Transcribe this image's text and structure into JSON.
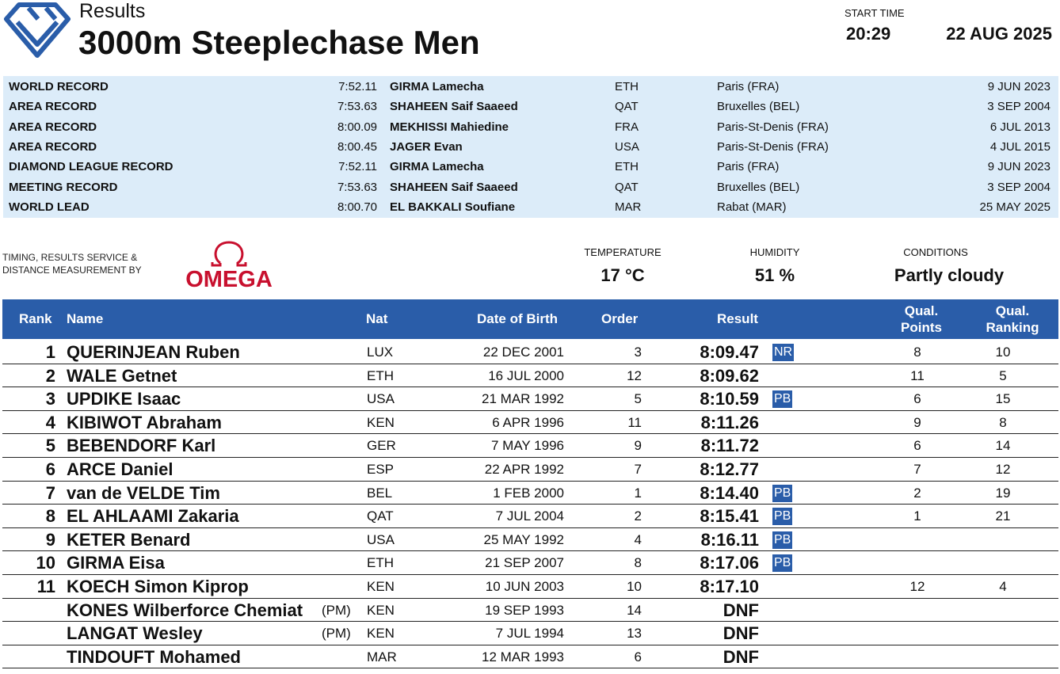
{
  "header": {
    "results_label": "Results",
    "event_title": "3000m Steeplechase Men",
    "start_time_label": "START TIME",
    "start_time": "20:29",
    "date": "22 AUG 2025"
  },
  "records": [
    {
      "type": "WORLD RECORD",
      "mark": "7:52.11",
      "athlete": "GIRMA Lamecha",
      "nat": "ETH",
      "venue": "Paris (FRA)",
      "date": "9 JUN 2023"
    },
    {
      "type": "AREA RECORD",
      "mark": "7:53.63",
      "athlete": "SHAHEEN Saif Saaeed",
      "nat": "QAT",
      "venue": "Bruxelles (BEL)",
      "date": "3 SEP 2004"
    },
    {
      "type": "AREA RECORD",
      "mark": "8:00.09",
      "athlete": "MEKHISSI Mahiedine",
      "nat": "FRA",
      "venue": "Paris-St-Denis (FRA)",
      "date": "6 JUL 2013"
    },
    {
      "type": "AREA RECORD",
      "mark": "8:00.45",
      "athlete": "JAGER Evan",
      "nat": "USA",
      "venue": "Paris-St-Denis (FRA)",
      "date": "4 JUL 2015"
    },
    {
      "type": "DIAMOND LEAGUE RECORD",
      "mark": "7:52.11",
      "athlete": "GIRMA Lamecha",
      "nat": "ETH",
      "venue": "Paris (FRA)",
      "date": "9 JUN 2023"
    },
    {
      "type": "MEETING RECORD",
      "mark": "7:53.63",
      "athlete": "SHAHEEN Saif Saaeed",
      "nat": "QAT",
      "venue": "Bruxelles (BEL)",
      "date": "3 SEP 2004"
    },
    {
      "type": "WORLD LEAD",
      "mark": "8:00.70",
      "athlete": "EL BAKKALI Soufiane",
      "nat": "MAR",
      "venue": "Rabat (MAR)",
      "date": "25 MAY 2025"
    }
  ],
  "timing": {
    "line1": "TIMING, RESULTS SERVICE &",
    "line2": "DISTANCE MEASUREMENT BY",
    "brand": "OMEGA"
  },
  "conditions": {
    "temperature_label": "TEMPERATURE",
    "temperature": "17 °C",
    "humidity_label": "HUMIDITY",
    "humidity": "51 %",
    "conditions_label": "CONDITIONS",
    "conditions": "Partly cloudy"
  },
  "columns": {
    "rank": "Rank",
    "name": "Name",
    "nat": "Nat",
    "dob": "Date of Birth",
    "order": "Order",
    "result": "Result",
    "qual_points_1": "Qual.",
    "qual_points_2": "Points",
    "qual_ranking_1": "Qual.",
    "qual_ranking_2": "Ranking"
  },
  "results": [
    {
      "rank": "1",
      "name": "QUERINJEAN Ruben",
      "pm": "",
      "nat": "LUX",
      "dob": "22 DEC 2001",
      "order": "3",
      "result": "8:09.47",
      "badge": "NR",
      "qual_points": "8",
      "qual_ranking": "10"
    },
    {
      "rank": "2",
      "name": "WALE Getnet",
      "pm": "",
      "nat": "ETH",
      "dob": "16 JUL 2000",
      "order": "12",
      "result": "8:09.62",
      "badge": "",
      "qual_points": "11",
      "qual_ranking": "5"
    },
    {
      "rank": "3",
      "name": "UPDIKE Isaac",
      "pm": "",
      "nat": "USA",
      "dob": "21 MAR 1992",
      "order": "5",
      "result": "8:10.59",
      "badge": "PB",
      "qual_points": "6",
      "qual_ranking": "15"
    },
    {
      "rank": "4",
      "name": "KIBIWOT Abraham",
      "pm": "",
      "nat": "KEN",
      "dob": "6 APR 1996",
      "order": "11",
      "result": "8:11.26",
      "badge": "",
      "qual_points": "9",
      "qual_ranking": "8"
    },
    {
      "rank": "5",
      "name": "BEBENDORF Karl",
      "pm": "",
      "nat": "GER",
      "dob": "7 MAY 1996",
      "order": "9",
      "result": "8:11.72",
      "badge": "",
      "qual_points": "6",
      "qual_ranking": "14"
    },
    {
      "rank": "6",
      "name": "ARCE Daniel",
      "pm": "",
      "nat": "ESP",
      "dob": "22 APR 1992",
      "order": "7",
      "result": "8:12.77",
      "badge": "",
      "qual_points": "7",
      "qual_ranking": "12"
    },
    {
      "rank": "7",
      "name": "van de VELDE Tim",
      "pm": "",
      "nat": "BEL",
      "dob": "1 FEB 2000",
      "order": "1",
      "result": "8:14.40",
      "badge": "PB",
      "qual_points": "2",
      "qual_ranking": "19"
    },
    {
      "rank": "8",
      "name": "EL AHLAAMI Zakaria",
      "pm": "",
      "nat": "QAT",
      "dob": "7 JUL 2004",
      "order": "2",
      "result": "8:15.41",
      "badge": "PB",
      "qual_points": "1",
      "qual_ranking": "21"
    },
    {
      "rank": "9",
      "name": "KETER Benard",
      "pm": "",
      "nat": "USA",
      "dob": "25 MAY 1992",
      "order": "4",
      "result": "8:16.11",
      "badge": "PB",
      "qual_points": "",
      "qual_ranking": ""
    },
    {
      "rank": "10",
      "name": "GIRMA Eisa",
      "pm": "",
      "nat": "ETH",
      "dob": "21 SEP 2007",
      "order": "8",
      "result": "8:17.06",
      "badge": "PB",
      "qual_points": "",
      "qual_ranking": ""
    },
    {
      "rank": "11",
      "name": "KOECH Simon Kiprop",
      "pm": "",
      "nat": "KEN",
      "dob": "10 JUN 2003",
      "order": "10",
      "result": "8:17.10",
      "badge": "",
      "qual_points": "12",
      "qual_ranking": "4"
    },
    {
      "rank": "",
      "name": "KONES Wilberforce Chemiat",
      "pm": "(PM)",
      "nat": "KEN",
      "dob": "19 SEP 1993",
      "order": "14",
      "result": "DNF",
      "badge": "",
      "qual_points": "",
      "qual_ranking": ""
    },
    {
      "rank": "",
      "name": "LANGAT Wesley",
      "pm": "(PM)",
      "nat": "KEN",
      "dob": "7 JUL 1994",
      "order": "13",
      "result": "DNF",
      "badge": "",
      "qual_points": "",
      "qual_ranking": ""
    },
    {
      "rank": "",
      "name": "TINDOUFT Mohamed",
      "pm": "",
      "nat": "MAR",
      "dob": "12 MAR 1993",
      "order": "6",
      "result": "DNF",
      "badge": "",
      "qual_points": "",
      "qual_ranking": ""
    }
  ],
  "icons": {
    "logo": "diamond-league-logo",
    "sponsor": "omega-logo"
  },
  "colors": {
    "accent": "#2a5da9",
    "record_bg": "#dcecf9",
    "omega_red": "#c8102e"
  }
}
